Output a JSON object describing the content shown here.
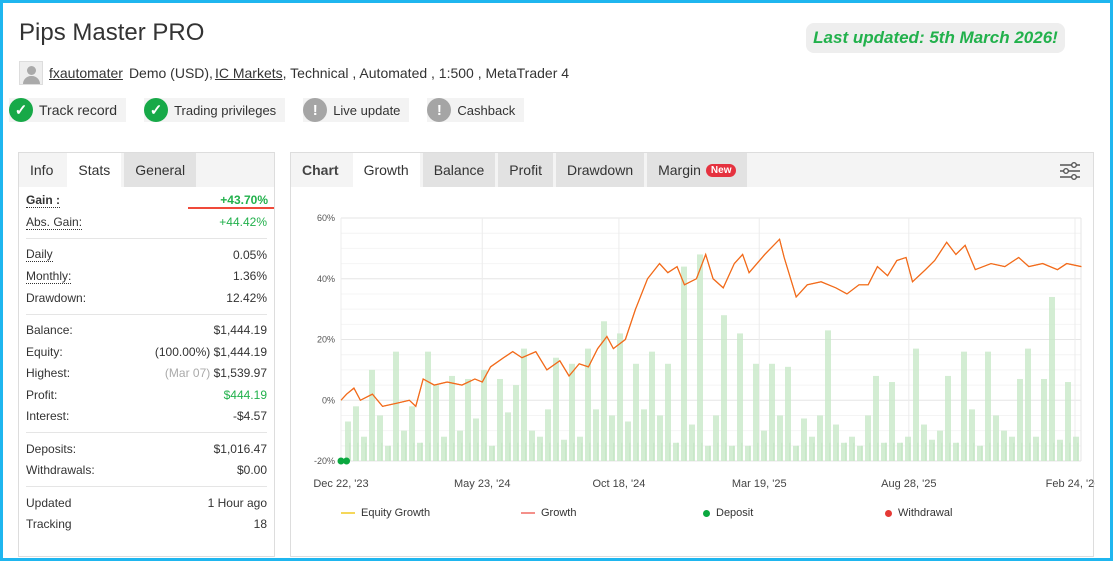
{
  "title": "Pips Master PRO",
  "last_updated": "Last updated: 5th March 2026!",
  "meta": {
    "user": "fxautomater",
    "account": "Demo (USD),",
    "broker": "IC Markets",
    "rest": ", Technical , Automated , 1:500 , MetaTrader 4"
  },
  "badges": [
    {
      "label": "Track record",
      "icon": "check-icon"
    },
    {
      "label": "Trading privileges",
      "icon": "check-icon"
    },
    {
      "label": "Live update",
      "icon": "exclamation-icon"
    },
    {
      "label": "Cashback",
      "icon": "exclamation-icon"
    }
  ],
  "left_tabs": [
    "Info",
    "Stats",
    "General"
  ],
  "stats": {
    "gain": {
      "label": "Gain :",
      "value": "+43.70%"
    },
    "abs_gain": {
      "label": "Abs. Gain:",
      "value": "+44.42%"
    },
    "daily": {
      "label": "Daily",
      "value": "0.05%"
    },
    "monthly": {
      "label": "Monthly:",
      "value": "1.36%"
    },
    "drawdown": {
      "label": "Drawdown:",
      "value": "12.42%"
    },
    "balance": {
      "label": "Balance:",
      "value": "$1,444.19"
    },
    "equity": {
      "label": "Equity:",
      "note": "(100.00%)",
      "value": "$1,444.19"
    },
    "highest": {
      "label": "Highest:",
      "note": "(Mar 07)",
      "value": "$1,539.97"
    },
    "profit": {
      "label": "Profit:",
      "value": "$444.19"
    },
    "interest": {
      "label": "Interest:",
      "value": "-$4.57"
    },
    "deposits": {
      "label": "Deposits:",
      "value": "$1,016.47"
    },
    "withdrawals": {
      "label": "Withdrawals:",
      "value": "$0.00"
    },
    "updated": {
      "label": "Updated",
      "value": "1 Hour ago"
    },
    "tracking": {
      "label": "Tracking",
      "value": "18"
    }
  },
  "chart_tabs": {
    "items": [
      "Chart",
      "Growth",
      "Balance",
      "Profit",
      "Drawdown",
      "Margin"
    ],
    "new_badge": "New"
  },
  "chart_data": {
    "type": "line",
    "y_ticks": [
      "60%",
      "40%",
      "20%",
      "0%",
      "-20%"
    ],
    "ylim": [
      -20,
      60
    ],
    "x_ticks": [
      "Dec 22, '23",
      "May 23, '24",
      "Oct 18, '24",
      "Mar 19, '25",
      "Aug 28, '25",
      "Feb 24, '26"
    ],
    "x_tick_dates": [
      "2023-12-22",
      "2024-05-23",
      "2024-10-18",
      "2025-03-19",
      "2025-08-28",
      "2026-02-24"
    ],
    "xlim": [
      "2023-12-22",
      "2026-03-05"
    ],
    "grid": true,
    "legend_position": "bottom",
    "colors": {
      "equity": "#f5c518",
      "growth": "#f26522",
      "deposit": "#0aa83f",
      "withdrawal": "#e53935",
      "bars": "#c8e8c8"
    },
    "legend": [
      "Equity Growth",
      "Growth",
      "Deposit",
      "Withdrawal"
    ],
    "growth": [
      [
        "2023-12-22",
        0
      ],
      [
        "2023-12-28",
        2
      ],
      [
        "2024-01-05",
        4
      ],
      [
        "2024-01-12",
        0
      ],
      [
        "2024-01-25",
        2
      ],
      [
        "2024-02-05",
        -2
      ],
      [
        "2024-02-20",
        -1
      ],
      [
        "2024-03-05",
        0
      ],
      [
        "2024-03-12",
        -2
      ],
      [
        "2024-03-20",
        7
      ],
      [
        "2024-04-01",
        5
      ],
      [
        "2024-04-15",
        6
      ],
      [
        "2024-05-01",
        5
      ],
      [
        "2024-05-15",
        7
      ],
      [
        "2024-05-23",
        6
      ],
      [
        "2024-06-01",
        11
      ],
      [
        "2024-06-15",
        14
      ],
      [
        "2024-06-25",
        16
      ],
      [
        "2024-07-05",
        14
      ],
      [
        "2024-07-20",
        16
      ],
      [
        "2024-08-01",
        10
      ],
      [
        "2024-08-15",
        13
      ],
      [
        "2024-08-25",
        8
      ],
      [
        "2024-09-05",
        12
      ],
      [
        "2024-09-15",
        11
      ],
      [
        "2024-09-25",
        17
      ],
      [
        "2024-10-05",
        21
      ],
      [
        "2024-10-12",
        17
      ],
      [
        "2024-10-25",
        20
      ],
      [
        "2024-11-05",
        30
      ],
      [
        "2024-11-18",
        40
      ],
      [
        "2024-12-01",
        45
      ],
      [
        "2024-12-10",
        42
      ],
      [
        "2024-12-20",
        44
      ],
      [
        "2024-12-28",
        38
      ],
      [
        "2025-01-10",
        40
      ],
      [
        "2025-01-20",
        48
      ],
      [
        "2025-01-28",
        40
      ],
      [
        "2025-02-08",
        37
      ],
      [
        "2025-02-20",
        45
      ],
      [
        "2025-03-01",
        48
      ],
      [
        "2025-03-08",
        42
      ],
      [
        "2025-03-25",
        48
      ],
      [
        "2025-04-10",
        53
      ],
      [
        "2025-04-15",
        47
      ],
      [
        "2025-04-28",
        34
      ],
      [
        "2025-05-10",
        38
      ],
      [
        "2025-05-25",
        39
      ],
      [
        "2025-06-10",
        37
      ],
      [
        "2025-06-22",
        35
      ],
      [
        "2025-07-05",
        38
      ],
      [
        "2025-07-15",
        38
      ],
      [
        "2025-07-25",
        44
      ],
      [
        "2025-08-05",
        41
      ],
      [
        "2025-08-15",
        46
      ],
      [
        "2025-08-25",
        47
      ],
      [
        "2025-09-01",
        39
      ],
      [
        "2025-09-15",
        43
      ],
      [
        "2025-09-25",
        46
      ],
      [
        "2025-10-08",
        52
      ],
      [
        "2025-10-18",
        48
      ],
      [
        "2025-10-28",
        51
      ],
      [
        "2025-11-08",
        43
      ],
      [
        "2025-11-25",
        45
      ],
      [
        "2025-12-10",
        44
      ],
      [
        "2025-12-25",
        47
      ],
      [
        "2026-01-05",
        44
      ],
      [
        "2026-01-20",
        45
      ],
      [
        "2026-02-05",
        43
      ],
      [
        "2026-02-15",
        45
      ],
      [
        "2026-03-03",
        44
      ]
    ],
    "deposits": [
      [
        "2023-12-22",
        -20
      ],
      [
        "2023-12-28",
        -20
      ]
    ],
    "bars": [
      -7,
      -2,
      -12,
      10,
      -5,
      -15,
      16,
      -10,
      -2,
      -14,
      16,
      5,
      -12,
      8,
      -10,
      7,
      -6,
      10,
      -15,
      7,
      -4,
      5,
      17,
      -10,
      -12,
      -3,
      14,
      -13,
      12,
      -12,
      17,
      -3,
      26,
      -5,
      22,
      -7,
      12,
      -3,
      16,
      -5,
      12,
      -14,
      44,
      -8,
      48,
      -15,
      -5,
      28,
      -15,
      22,
      -15,
      12,
      -10,
      12,
      -5,
      11,
      -15,
      -6,
      -12,
      -5,
      23,
      -8,
      -14,
      -12,
      -15,
      -5,
      8,
      -14,
      6,
      -14,
      -12,
      17,
      -8,
      -13,
      -10,
      8,
      -14,
      16,
      -3,
      -15,
      16,
      -5,
      -10,
      -12,
      7,
      17,
      -12,
      7,
      34,
      -13,
      6,
      -12
    ]
  }
}
